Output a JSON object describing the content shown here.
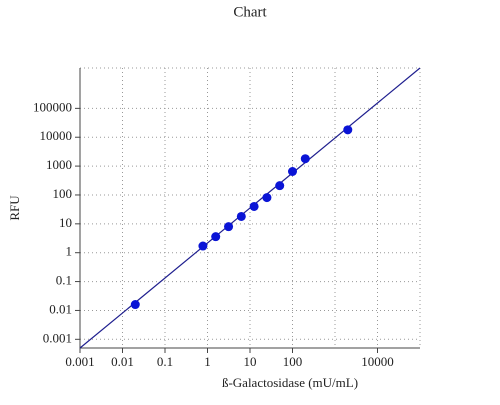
{
  "chart_data": {
    "type": "scatter",
    "title": "Chart",
    "x_label": "ß-Galactosidase (mU/mL)",
    "y_label": "RFU",
    "log_x": true,
    "log_y": true,
    "grid": true,
    "xlim": [
      0.001,
      100000
    ],
    "ylim": [
      0.0005,
      2500000
    ],
    "xticks": [
      0.001,
      0.01,
      0.1,
      1,
      10,
      100,
      10000
    ],
    "xgrid": [
      0.001,
      0.01,
      0.1,
      1,
      10,
      100,
      1000,
      10000
    ],
    "yticks": [
      0.001,
      0.01,
      0.1,
      1,
      10,
      100,
      1000,
      10000,
      100000
    ],
    "series": [
      {
        "color": "#0a14d6",
        "x": [
          0.02,
          0.78,
          1.56,
          3.13,
          6.25,
          12.5,
          25,
          50,
          100,
          200,
          2000
        ],
        "values": [
          0.016,
          1.7,
          3.6,
          8,
          18,
          40,
          81,
          210,
          650,
          1800,
          18000
        ]
      }
    ],
    "fit_line": {
      "color": "#1f1f8f",
      "x": [
        0.001,
        100000
      ],
      "values": [
        0.0005,
        2500000
      ]
    }
  }
}
